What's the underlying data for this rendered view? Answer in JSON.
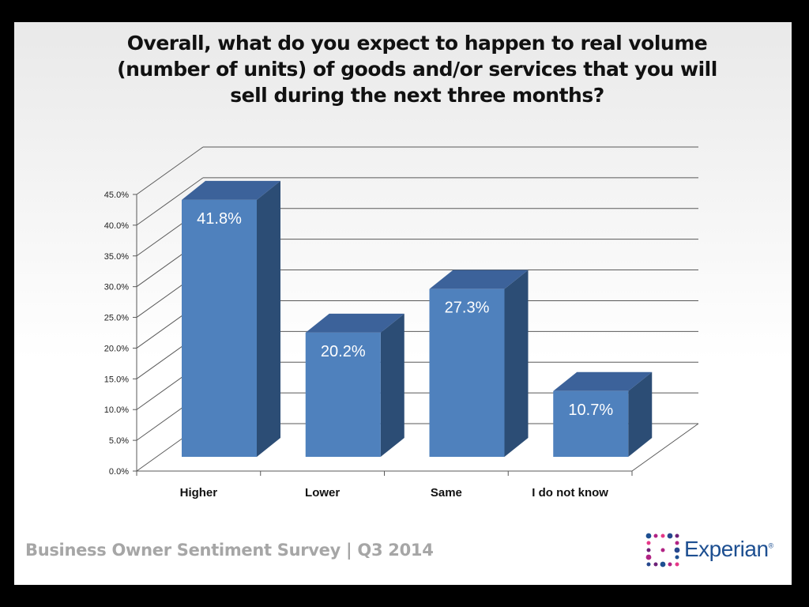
{
  "slide": {
    "title": "Overall, what do you expect to happen to real volume (number of units) of goods and/or services that you will sell during the next three months?",
    "footer": "Business Owner Sentiment Survey | Q3 2014",
    "logo_text": "Experian",
    "logo_reg": "®"
  },
  "chart_data": {
    "type": "bar",
    "categories": [
      "Higher",
      "Lower",
      "Same",
      "I do not know"
    ],
    "values": [
      41.8,
      20.2,
      27.3,
      10.7
    ],
    "data_labels": [
      "41.8%",
      "20.2%",
      "27.3%",
      "10.7%"
    ],
    "y_ticks": [
      "0.0%",
      "5.0%",
      "10.0%",
      "15.0%",
      "20.0%",
      "25.0%",
      "30.0%",
      "35.0%",
      "40.0%",
      "45.0%"
    ],
    "ylim": [
      0,
      45
    ],
    "grid": true,
    "style": "3d-column",
    "colors": {
      "bar_front": "#4f81bd",
      "bar_side": "#2c4d75",
      "bar_top": "#3c629a",
      "grid": "#595959"
    }
  }
}
